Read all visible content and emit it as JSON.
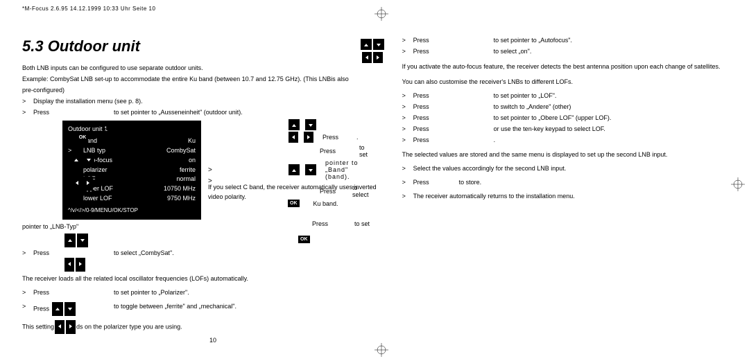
{
  "header": "*M-Focus 2.6.95  14.12.1999 10:33 Uhr  Seite 10",
  "section_number": "5.3",
  "section_title": "Outdoor unit",
  "page_number": "10",
  "col1": {
    "intro": "Both LNB inputs can be configured to use separate outdoor units.",
    "example": "Example:  CombySat LNB set-up to accommodate the entire Ku band (between 10.7 and 12.75 GHz).  (This LNBis also",
    "example_cont": "pre-configured)",
    "r1": "Display the installation menu (see p. 8).",
    "r2_action": "Press",
    "r2_desc": "to set pointer to „Ausseneinheit\" (outdoor unit).",
    "menu": {
      "title": "Outdoor unit 1",
      "rows": [
        {
          "gt": "",
          "lbl": "band",
          "val": "Ku"
        },
        {
          "gt": ">",
          "lbl": "LNB typ",
          "val": "CombySat"
        },
        {
          "gt": "",
          "lbl": "auto-focus",
          "val": "on"
        },
        {
          "gt": "",
          "lbl": "polarizer",
          "val": "ferrite"
        },
        {
          "gt": "",
          "lbl": "LOF",
          "val": "normal"
        },
        {
          "gt": "",
          "lbl": "upper LOF",
          "val": "10750 MHz"
        },
        {
          "gt": "",
          "lbl": "lower LOF",
          "val": "9750 MHz"
        }
      ],
      "footer": "^/v/</>/0-9/MENU/OK/STOP"
    },
    "r3": "pointer to „LNB-Typ\"",
    "r4_action": "Press",
    "r4_desc": "to select „CombySat\".",
    "r5": "The receiver loads all the related local oscillator frequencies (LOFs) automatically.",
    "r6_action": "Press",
    "r6_desc": "to set pointer to „Polarizer\".",
    "r7_action": "Press",
    "r7_desc": "to toggle between „ferrite\" and „mechanical\".",
    "r8": "This setting depends on the polarizer type you are using."
  },
  "mid": {
    "m1a": "Press",
    "m1b": ".",
    "m2a": "Press",
    "m2b": "to set",
    "m3": "pointer to „Band\" (band).",
    "m4a": "Press",
    "m4b": "to select",
    "m5": "Ku band.",
    "m6": "If you select C band, the receiver automatically uses inverted video polarity.",
    "m7a": "Press",
    "m7b": "to set"
  },
  "col2": {
    "r1_action": "Press",
    "r1_desc": "to set pointer to „Autofocus\".",
    "r2_action": "Press",
    "r2_desc": "to select „on\".",
    "p1": "If you activate the auto-focus feature, the receiver detects the best antenna position upon each change of satellites.",
    "p2": "You can also customise the receiver's LNBs to different LOFs.",
    "r3_action": "Press",
    "r3_desc": "to set pointer to „LOF\".",
    "r4_action": "Press",
    "r4_desc": "to switch to „Andere\" (other)",
    "r5_action": "Press",
    "r5_desc": "to set pointer to „Obere LOF\" (upper LOF).",
    "r6_action": "Press",
    "r6_desc": "or use the ten-key keypad to select LOF.",
    "r7_action": "Press",
    "r7_desc": ".",
    "p3": "The selected values are stored and the same menu is displayed to set up the second LNB input.",
    "r8_desc": "Select the values accordingly for the second LNB input.",
    "r9_action": "Press",
    "r9_desc": "to store.",
    "p4": "The receiver automatically returns to the installation menu."
  },
  "colors": {
    "bg": "#ffffff",
    "text": "#000000",
    "menu_bg": "#000000",
    "menu_text": "#ffffff"
  }
}
